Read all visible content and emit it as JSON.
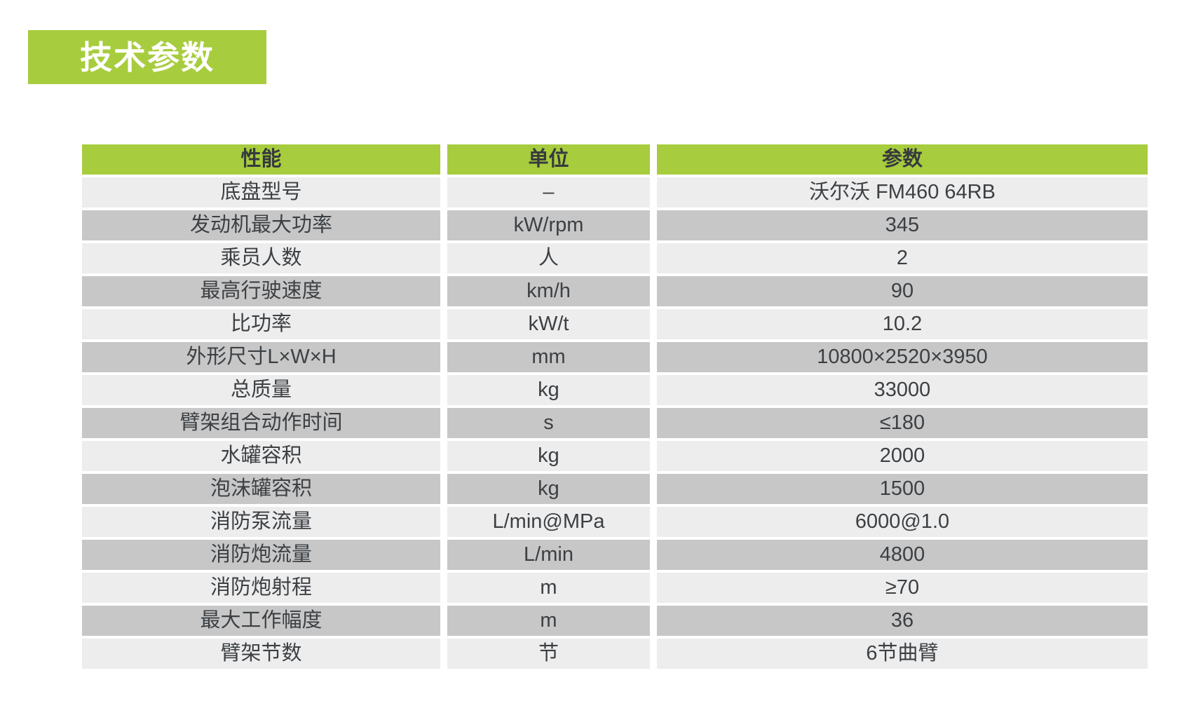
{
  "title": {
    "label": "技术参数"
  },
  "colors": {
    "accent_green": "#A7CC3E",
    "row_light": "#EDEDEE",
    "row_dark": "#C7C7C8",
    "text": "#3C4043",
    "title_text": "#FFFFFF"
  },
  "table": {
    "headers": {
      "performance": "性能",
      "unit": "单位",
      "parameter": "参数"
    },
    "rows": [
      {
        "label": "底盘型号",
        "unit": "–",
        "value": "沃尔沃 FM460 64RB"
      },
      {
        "label": "发动机最大功率",
        "unit": "kW/rpm",
        "value": "345"
      },
      {
        "label": "乘员人数",
        "unit": "人",
        "value": "2"
      },
      {
        "label": "最高行驶速度",
        "unit": "km/h",
        "value": "90"
      },
      {
        "label": "比功率",
        "unit": "kW/t",
        "value": "10.2"
      },
      {
        "label": "外形尺寸L×W×H",
        "unit": "mm",
        "value": "10800×2520×3950"
      },
      {
        "label": "总质量",
        "unit": "kg",
        "value": "33000"
      },
      {
        "label": "臂架组合动作时间",
        "unit": "s",
        "value": "≤180"
      },
      {
        "label": "水罐容积",
        "unit": "kg",
        "value": "2000"
      },
      {
        "label": "泡沫罐容积",
        "unit": "kg",
        "value": "1500"
      },
      {
        "label": "消防泵流量",
        "unit": "L/min@MPa",
        "value": "6000@1.0"
      },
      {
        "label": "消防炮流量",
        "unit": "L/min",
        "value": "4800"
      },
      {
        "label": "消防炮射程",
        "unit": "m",
        "value": "≥70"
      },
      {
        "label": "最大工作幅度",
        "unit": "m",
        "value": "36"
      },
      {
        "label": "臂架节数",
        "unit": "节",
        "value": "6节曲臂"
      }
    ]
  }
}
